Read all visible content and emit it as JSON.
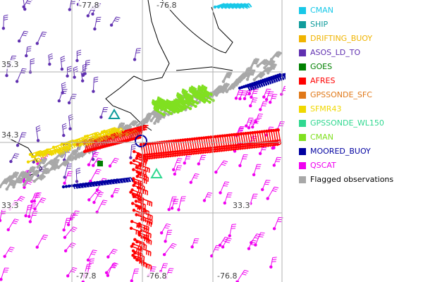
{
  "map": {
    "lon_labels_top": [
      "-77.8",
      "-76.8"
    ],
    "lat_labels": [
      "35.3",
      "34.3",
      "33.3",
      "33.3"
    ],
    "lon_labels_bottom": [
      "-77.8",
      "-76.8",
      "-76.8"
    ]
  },
  "legend": [
    {
      "label": "CMAN",
      "color": "#18c8e8"
    },
    {
      "label": "SHIP",
      "color": "#109c9c"
    },
    {
      "label": "DRIFTING_BUOY",
      "color": "#f0b400"
    },
    {
      "label": "ASOS_LD_TO",
      "color": "#6030b0"
    },
    {
      "label": "GOES",
      "color": "#008000"
    },
    {
      "label": "AFRES",
      "color": "#ff0000"
    },
    {
      "label": "GPSSONDE_SFC",
      "color": "#e07818"
    },
    {
      "label": "SFMR43",
      "color": "#f0d800"
    },
    {
      "label": "GPSSONDE_WL150",
      "color": "#30d890"
    },
    {
      "label": "CMAN",
      "color": "#80e020"
    },
    {
      "label": "MOORED_BUOY",
      "color": "#0000a0"
    },
    {
      "label": "QSCAT",
      "color": "#f000f0"
    },
    {
      "label": "Flagged observations",
      "color": "#a8a8a8",
      "text_color": "#000000"
    }
  ]
}
